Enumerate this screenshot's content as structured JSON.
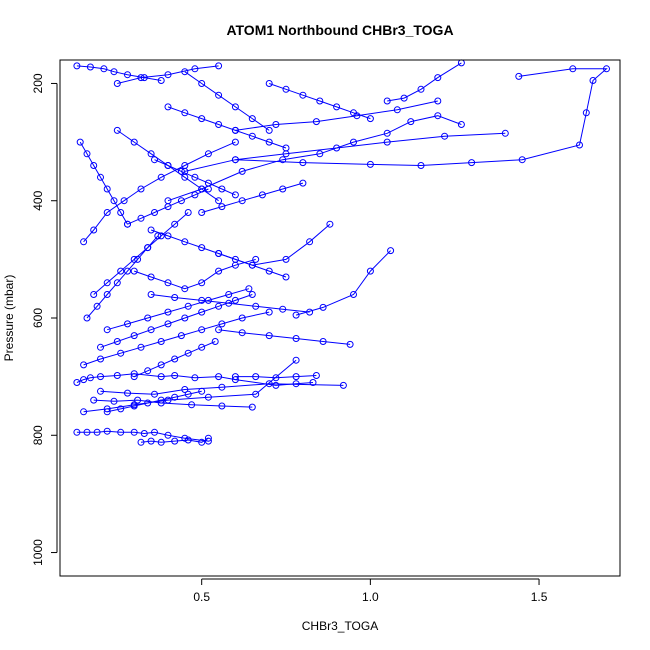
{
  "chart_data": {
    "type": "scatter",
    "title": "ATOM1 Northbound CHBr3_TOGA",
    "xlabel": "CHBr3_TOGA",
    "ylabel": "Pressure (mbar)",
    "xlim": [
      0.08,
      1.74
    ],
    "ylim": [
      1040,
      160
    ],
    "y_reversed": true,
    "x_ticks": [
      0.5,
      1.0,
      1.5
    ],
    "x_tick_labels": [
      "0.5",
      "1.0",
      "1.5"
    ],
    "y_ticks": [
      200,
      400,
      600,
      800,
      1000
    ],
    "y_tick_labels": [
      "200",
      "400",
      "600",
      "800",
      "1000"
    ],
    "grid": false,
    "series_color": "#0000ff",
    "marker": "open-circle",
    "series": [
      {
        "name": "",
        "x": [
          0.83,
          0.78,
          0.72,
          0.6,
          0.55,
          0.48,
          0.42,
          0.38,
          0.3,
          0.25,
          0.2,
          0.17,
          0.15,
          0.13
        ],
        "y": [
          710,
          712,
          715,
          705,
          700,
          702,
          698,
          700,
          695,
          698,
          700,
          702,
          705,
          710
        ]
      },
      {
        "name": "",
        "x": [
          0.13,
          0.16,
          0.19,
          0.22,
          0.26,
          0.3,
          0.33,
          0.36,
          0.4,
          0.45,
          0.52
        ],
        "y": [
          795,
          795,
          795,
          793,
          795,
          795,
          797,
          795,
          800,
          805,
          810
        ]
      },
      {
        "name": "",
        "x": [
          0.32,
          0.35,
          0.38,
          0.42,
          0.46,
          0.5,
          0.52
        ],
        "y": [
          812,
          810,
          812,
          810,
          808,
          812,
          805
        ]
      },
      {
        "name": "",
        "x": [
          0.18,
          0.24,
          0.31,
          0.38,
          0.47,
          0.56,
          0.65
        ],
        "y": [
          740,
          742,
          740,
          745,
          748,
          750,
          752
        ]
      },
      {
        "name": "",
        "x": [
          0.2,
          0.28,
          0.36,
          0.45,
          0.56,
          0.7,
          0.92
        ],
        "y": [
          725,
          728,
          730,
          722,
          718,
          712,
          715
        ]
      },
      {
        "name": "",
        "x": [
          0.15,
          0.22,
          0.3,
          0.4,
          0.52,
          0.66,
          0.78
        ],
        "y": [
          760,
          755,
          748,
          740,
          735,
          730,
          672
        ]
      },
      {
        "name": "",
        "x": [
          0.78,
          0.86,
          0.95,
          1.0,
          1.06
        ],
        "y": [
          595,
          582,
          560,
          520,
          485
        ]
      },
      {
        "name": "",
        "x": [
          0.55,
          0.65,
          0.75,
          0.82,
          0.88
        ],
        "y": [
          490,
          510,
          500,
          470,
          440
        ]
      },
      {
        "name": "",
        "x": [
          0.4,
          0.5,
          0.62,
          0.74,
          0.85,
          0.95,
          1.05,
          1.12,
          1.2,
          1.27
        ],
        "y": [
          400,
          380,
          350,
          330,
          320,
          300,
          285,
          265,
          255,
          270
        ]
      },
      {
        "name": "",
        "x": [
          0.45,
          0.6,
          0.75,
          0.9,
          1.05,
          1.22,
          1.4
        ],
        "y": [
          350,
          330,
          320,
          310,
          300,
          290,
          285
        ]
      },
      {
        "name": "",
        "x": [
          0.6,
          0.8,
          1.0,
          1.15,
          1.3,
          1.45,
          1.62,
          1.64,
          1.66,
          1.7,
          1.6,
          1.44
        ],
        "y": [
          330,
          335,
          338,
          340,
          335,
          330,
          305,
          250,
          195,
          175,
          175,
          188
        ]
      },
      {
        "name": "",
        "x": [
          1.05,
          1.1,
          1.15,
          1.2,
          1.27
        ],
        "y": [
          230,
          225,
          210,
          190,
          165
        ]
      },
      {
        "name": "",
        "x": [
          0.6,
          0.72,
          0.84,
          0.96,
          1.08,
          1.2
        ],
        "y": [
          280,
          270,
          265,
          255,
          245,
          230
        ]
      },
      {
        "name": "",
        "x": [
          0.25,
          0.32,
          0.4,
          0.48,
          0.55
        ],
        "y": [
          200,
          190,
          185,
          175,
          170
        ]
      },
      {
        "name": "",
        "x": [
          0.13,
          0.17,
          0.21,
          0.24,
          0.28,
          0.33,
          0.38
        ],
        "y": [
          170,
          172,
          175,
          180,
          185,
          190,
          195
        ]
      },
      {
        "name": "",
        "x": [
          0.15,
          0.18,
          0.22,
          0.27,
          0.32,
          0.38,
          0.45,
          0.52,
          0.6
        ],
        "y": [
          470,
          450,
          420,
          400,
          380,
          360,
          340,
          320,
          300
        ]
      },
      {
        "name": "",
        "x": [
          0.3,
          0.35,
          0.4,
          0.45,
          0.5,
          0.55,
          0.6,
          0.66
        ],
        "y": [
          520,
          530,
          540,
          550,
          540,
          520,
          510,
          500
        ]
      },
      {
        "name": "",
        "x": [
          0.22,
          0.28,
          0.34,
          0.4,
          0.46,
          0.52,
          0.58,
          0.64
        ],
        "y": [
          620,
          610,
          600,
          590,
          580,
          570,
          560,
          550
        ]
      },
      {
        "name": "",
        "x": [
          0.15,
          0.2,
          0.26,
          0.32,
          0.38,
          0.44,
          0.5,
          0.56,
          0.62,
          0.7
        ],
        "y": [
          680,
          670,
          660,
          650,
          640,
          630,
          620,
          610,
          600,
          590
        ]
      },
      {
        "name": "",
        "x": [
          0.35,
          0.4,
          0.45,
          0.5,
          0.55,
          0.6,
          0.65,
          0.7,
          0.75
        ],
        "y": [
          450,
          460,
          470,
          480,
          490,
          500,
          510,
          520,
          530
        ]
      },
      {
        "name": "",
        "x": [
          0.18,
          0.22,
          0.26,
          0.3,
          0.34,
          0.38,
          0.42,
          0.46
        ],
        "y": [
          560,
          540,
          520,
          500,
          480,
          460,
          440,
          420
        ]
      },
      {
        "name": "",
        "x": [
          0.25,
          0.3,
          0.35,
          0.4,
          0.45,
          0.5,
          0.55
        ],
        "y": [
          280,
          300,
          320,
          340,
          360,
          380,
          400
        ]
      },
      {
        "name": "",
        "x": [
          0.4,
          0.45,
          0.5,
          0.55,
          0.6,
          0.65,
          0.7,
          0.75
        ],
        "y": [
          240,
          250,
          260,
          270,
          280,
          290,
          300,
          310
        ]
      },
      {
        "name": "",
        "x": [
          0.2,
          0.25,
          0.3,
          0.35,
          0.4,
          0.45,
          0.5,
          0.55,
          0.6,
          0.65
        ],
        "y": [
          650,
          640,
          630,
          620,
          610,
          600,
          590,
          580,
          570,
          560
        ]
      },
      {
        "name": "",
        "x": [
          0.3,
          0.34,
          0.38,
          0.42,
          0.46,
          0.5,
          0.54
        ],
        "y": [
          700,
          690,
          680,
          670,
          660,
          650,
          640
        ]
      },
      {
        "name": "",
        "x": [
          0.5,
          0.56,
          0.62,
          0.68,
          0.74,
          0.8
        ],
        "y": [
          420,
          410,
          400,
          390,
          380,
          370
        ]
      },
      {
        "name": "",
        "x": [
          0.14,
          0.16,
          0.18,
          0.2,
          0.22,
          0.24,
          0.26,
          0.28
        ],
        "y": [
          300,
          320,
          340,
          360,
          380,
          400,
          420,
          440
        ]
      },
      {
        "name": "",
        "x": [
          0.55,
          0.62,
          0.7,
          0.78,
          0.86,
          0.94
        ],
        "y": [
          620,
          625,
          630,
          635,
          640,
          645
        ]
      },
      {
        "name": "",
        "x": [
          0.35,
          0.42,
          0.5,
          0.58,
          0.66,
          0.74,
          0.82
        ],
        "y": [
          560,
          565,
          570,
          575,
          580,
          585,
          590
        ]
      },
      {
        "name": "",
        "x": [
          0.45,
          0.5,
          0.55,
          0.6,
          0.65,
          0.7
        ],
        "y": [
          180,
          200,
          220,
          240,
          260,
          280
        ]
      },
      {
        "name": "",
        "x": [
          0.7,
          0.75,
          0.8,
          0.85,
          0.9,
          0.95,
          1.0
        ],
        "y": [
          200,
          210,
          220,
          230,
          240,
          250,
          260
        ]
      },
      {
        "name": "",
        "x": [
          0.22,
          0.26,
          0.3,
          0.34,
          0.38,
          0.42,
          0.46,
          0.5
        ],
        "y": [
          760,
          755,
          750,
          745,
          740,
          735,
          730,
          725
        ]
      },
      {
        "name": "",
        "x": [
          0.6,
          0.66,
          0.72,
          0.78,
          0.84
        ],
        "y": [
          700,
          700,
          702,
          700,
          698
        ]
      },
      {
        "name": "",
        "x": [
          0.28,
          0.32,
          0.36,
          0.4,
          0.44,
          0.48,
          0.52
        ],
        "y": [
          440,
          430,
          420,
          410,
          400,
          390,
          380
        ]
      },
      {
        "name": "",
        "x": [
          0.16,
          0.19,
          0.22,
          0.25,
          0.28,
          0.31,
          0.34,
          0.37
        ],
        "y": [
          600,
          580,
          560,
          540,
          520,
          500,
          480,
          460
        ]
      },
      {
        "name": "",
        "x": [
          0.36,
          0.4,
          0.44,
          0.48,
          0.52,
          0.56,
          0.6
        ],
        "y": [
          330,
          340,
          350,
          360,
          370,
          380,
          390
        ]
      }
    ]
  }
}
